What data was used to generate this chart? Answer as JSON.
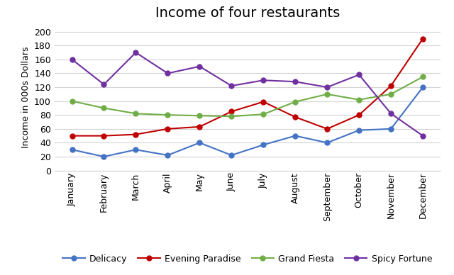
{
  "title": "Income of four restaurants",
  "ylabel": "Income in 000s Dollars",
  "months": [
    "January",
    "February",
    "March",
    "April",
    "May",
    "June",
    "July",
    "August",
    "September",
    "October",
    "November",
    "December"
  ],
  "series": {
    "Delicacy": [
      30,
      20,
      30,
      22,
      40,
      22,
      37,
      50,
      40,
      58,
      60,
      120
    ],
    "Evening Paradise": [
      50,
      50,
      52,
      60,
      63,
      85,
      99,
      77,
      60,
      80,
      122,
      190
    ],
    "Grand Fiesta": [
      100,
      90,
      82,
      80,
      79,
      78,
      81,
      99,
      110,
      102,
      110,
      135
    ],
    "Spicy Fortune": [
      160,
      124,
      170,
      140,
      150,
      122,
      130,
      128,
      120,
      138,
      82,
      50
    ]
  },
  "colors": {
    "Delicacy": "#4472C4",
    "Evening Paradise": "#C00000",
    "Grand Fiesta": "#70AD47",
    "Spicy Fortune": "#7030A0"
  },
  "ylim": [
    0,
    210
  ],
  "yticks": [
    0,
    20,
    40,
    60,
    80,
    100,
    120,
    140,
    160,
    180,
    200
  ],
  "bg_color": "#FFFFFF",
  "grid_color": "#D3D3D3",
  "title_fontsize": 14,
  "axis_label_fontsize": 9,
  "tick_fontsize": 9,
  "legend_fontsize": 9
}
